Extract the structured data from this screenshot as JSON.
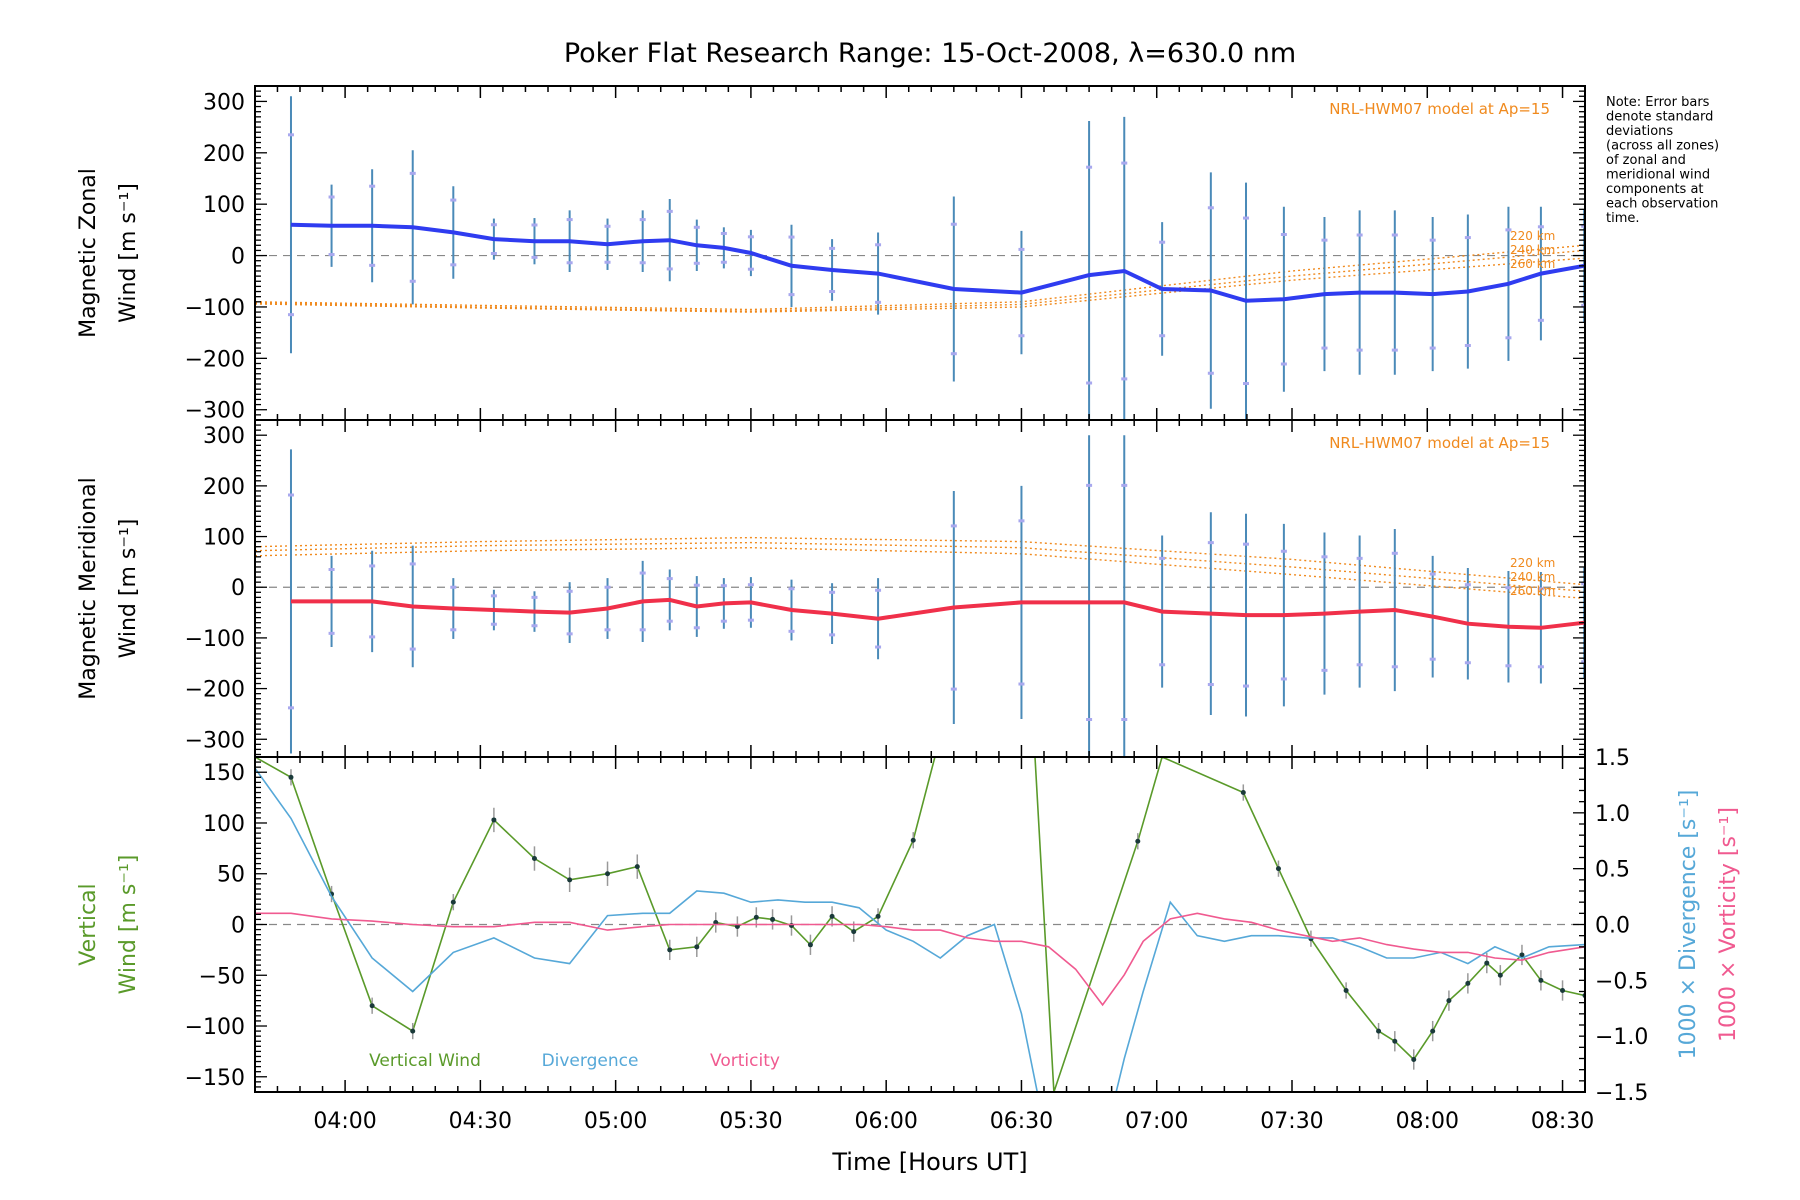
{
  "title": "Poker Flat Research Range: 15-Oct-2008, λ=630.0 nm",
  "note": [
    "Note: Error bars",
    "denote standard",
    "deviations",
    "(across all zones)",
    "of zonal and",
    "meridional wind",
    "components at",
    "each observation",
    "time."
  ],
  "colors": {
    "zonal": "#2f3cf0",
    "meridional": "#f0304a",
    "model": "#f08a1e",
    "vertical": "#5a9a2a",
    "divergence": "#56a8d8",
    "vorticity": "#f05a90",
    "zero": "#888888",
    "scatter": "#a8a8ee"
  },
  "xaxis": {
    "label": "Time [Hours UT]",
    "ticks": [
      "04:00",
      "04:30",
      "05:00",
      "05:30",
      "06:00",
      "06:30",
      "07:00",
      "07:30",
      "08:00",
      "08:30"
    ],
    "range_hours": [
      3.667,
      8.583
    ]
  },
  "chart_data": [
    {
      "type": "line",
      "panel": "zonal",
      "ylabel": [
        "Magnetic Zonal",
        "Wind [m s⁻¹]"
      ],
      "ylim": [
        -320,
        330
      ],
      "yticks": [
        "300",
        "200",
        "100",
        "0",
        "−100",
        "−200",
        "−300"
      ],
      "model_label": "NRL-HWM07 model at Ap=15",
      "model_alt_labels": [
        "220 km",
        "240 km",
        "260 km"
      ],
      "series": [
        {
          "x": [
            3.8,
            3.95,
            4.1,
            4.25,
            4.4,
            4.55,
            4.7,
            4.83,
            4.97,
            5.1,
            5.2,
            5.3,
            5.4,
            5.5,
            5.65,
            5.8,
            5.97,
            6.25,
            6.5,
            6.75,
            6.88,
            7.02,
            7.2,
            7.33,
            7.47,
            7.62,
            7.75,
            7.88,
            8.02,
            8.15,
            8.3,
            8.42,
            8.58
          ],
          "y": [
            60,
            58,
            58,
            55,
            45,
            32,
            28,
            28,
            22,
            28,
            30,
            20,
            15,
            5,
            -20,
            -28,
            -35,
            -65,
            -72,
            -38,
            -30,
            -65,
            -68,
            -88,
            -85,
            -75,
            -72,
            -72,
            -75,
            -70,
            -55,
            -35,
            -20
          ],
          "err": [
            250,
            80,
            110,
            150,
            90,
            40,
            45,
            60,
            50,
            60,
            80,
            50,
            40,
            45,
            80,
            60,
            80,
            180,
            120,
            300,
            300,
            130,
            230,
            230,
            180,
            150,
            160,
            160,
            150,
            150,
            150,
            130,
            110
          ]
        }
      ],
      "model_curves": [
        {
          "x": [
            3.667,
            4.5,
            5.5,
            6.5,
            7.5,
            8.583
          ],
          "y": [
            -90,
            -97,
            -105,
            -90,
            -30,
            20
          ]
        },
        {
          "x": [
            3.667,
            4.5,
            5.5,
            6.5,
            7.5,
            8.583
          ],
          "y": [
            -92,
            -100,
            -108,
            -95,
            -40,
            10
          ]
        },
        {
          "x": [
            3.667,
            4.5,
            5.5,
            6.5,
            7.5,
            8.583
          ],
          "y": [
            -94,
            -102,
            -110,
            -100,
            -48,
            -5
          ]
        }
      ]
    },
    {
      "type": "line",
      "panel": "meridional",
      "ylabel": [
        "Magnetic Meridional",
        "Wind [m s⁻¹]"
      ],
      "ylim": [
        -335,
        330
      ],
      "yticks": [
        "300",
        "200",
        "100",
        "0",
        "−100",
        "−200",
        "−300"
      ],
      "model_label": "NRL-HWM07 model at Ap=15",
      "model_alt_labels": [
        "220 km",
        "240 km",
        "260 km"
      ],
      "series": [
        {
          "x": [
            3.8,
            3.95,
            4.1,
            4.25,
            4.4,
            4.55,
            4.7,
            4.83,
            4.97,
            5.1,
            5.2,
            5.3,
            5.4,
            5.5,
            5.65,
            5.8,
            5.97,
            6.25,
            6.5,
            6.75,
            6.88,
            7.02,
            7.2,
            7.33,
            7.47,
            7.62,
            7.75,
            7.88,
            8.02,
            8.15,
            8.3,
            8.42,
            8.58
          ],
          "y": [
            -28,
            -28,
            -28,
            -38,
            -42,
            -45,
            -48,
            -50,
            -42,
            -28,
            -25,
            -38,
            -32,
            -30,
            -45,
            -52,
            -62,
            -40,
            -30,
            -30,
            -30,
            -48,
            -52,
            -55,
            -55,
            -52,
            -48,
            -45,
            -58,
            -72,
            -78,
            -80,
            -70
          ],
          "err": [
            300,
            90,
            100,
            120,
            60,
            40,
            40,
            60,
            60,
            80,
            60,
            60,
            50,
            50,
            60,
            60,
            80,
            230,
            230,
            330,
            330,
            150,
            200,
            200,
            180,
            160,
            150,
            160,
            120,
            110,
            110,
            110,
            110
          ]
        }
      ],
      "model_curves": [
        {
          "x": [
            3.667,
            4.5,
            5.5,
            6.5,
            7.5,
            8.583
          ],
          "y": [
            80,
            90,
            98,
            90,
            55,
            5
          ]
        },
        {
          "x": [
            3.667,
            4.5,
            5.5,
            6.5,
            7.5,
            8.583
          ],
          "y": [
            72,
            82,
            88,
            78,
            40,
            -8
          ]
        },
        {
          "x": [
            3.667,
            4.5,
            5.5,
            6.5,
            7.5,
            8.583
          ],
          "y": [
            62,
            72,
            78,
            66,
            25,
            -22
          ]
        }
      ]
    },
    {
      "type": "line",
      "panel": "vertical",
      "ylabel": [
        "Vertical",
        "Wind [m s⁻¹]"
      ],
      "ylabel_right": [
        "1000 × Divergence [s⁻¹]",
        "1000 × Vorticity [s⁻¹]"
      ],
      "ylim": [
        -165,
        165
      ],
      "ylim_right": [
        -1.5,
        1.5
      ],
      "yticks": [
        "150",
        "100",
        "50",
        "0",
        "−50",
        "−100",
        "−150"
      ],
      "yticks_right": [
        "1.5",
        "1.0",
        "0.5",
        "0.0",
        "−0.5",
        "−1.0",
        "−1.5"
      ],
      "legend": [
        "Vertical Wind",
        "Divergence",
        "Vorticity"
      ],
      "series": [
        {
          "name": "Vertical Wind",
          "x": [
            3.667,
            3.8,
            3.95,
            4.1,
            4.25,
            4.4,
            4.55,
            4.7,
            4.83,
            4.97,
            5.08,
            5.2,
            5.3,
            5.37,
            5.45,
            5.52,
            5.58,
            5.65,
            5.72,
            5.8,
            5.88,
            5.97,
            6.1,
            6.18,
            6.55,
            6.62,
            6.93,
            7.02,
            7.32,
            7.45,
            7.57,
            7.7,
            7.82,
            7.88,
            7.95,
            8.02,
            8.08,
            8.15,
            8.22,
            8.27,
            8.35,
            8.42,
            8.5,
            8.583
          ],
          "y": [
            165,
            145,
            30,
            -80,
            -105,
            22,
            103,
            65,
            44,
            50,
            57,
            -25,
            -22,
            2,
            -2,
            7,
            5,
            -1,
            -20,
            8,
            -7,
            8,
            83,
            165,
            165,
            -165,
            82,
            165,
            130,
            55,
            -14,
            -65,
            -105,
            -115,
            -133,
            -105,
            -75,
            -58,
            -38,
            -50,
            -30,
            -55,
            -65,
            -70
          ],
          "err": [
            0,
            8,
            8,
            8,
            8,
            8,
            12,
            12,
            12,
            12,
            12,
            10,
            10,
            10,
            10,
            10,
            10,
            10,
            10,
            10,
            10,
            8,
            8,
            0,
            0,
            0,
            8,
            0,
            8,
            8,
            8,
            8,
            8,
            10,
            10,
            10,
            10,
            10,
            10,
            10,
            10,
            10,
            10,
            10
          ]
        },
        {
          "name": "Divergence",
          "x": [
            3.667,
            3.8,
            3.95,
            4.1,
            4.25,
            4.4,
            4.55,
            4.7,
            4.83,
            4.97,
            5.1,
            5.2,
            5.3,
            5.4,
            5.5,
            5.6,
            5.7,
            5.8,
            5.9,
            6.0,
            6.1,
            6.2,
            6.3,
            6.4,
            6.5,
            6.6,
            6.7,
            6.8,
            6.88,
            6.95,
            7.05,
            7.15,
            7.25,
            7.35,
            7.45,
            7.55,
            7.65,
            7.75,
            7.85,
            7.95,
            8.05,
            8.15,
            8.25,
            8.35,
            8.45,
            8.583
          ],
          "y": [
            1.4,
            0.95,
            0.25,
            -0.3,
            -0.6,
            -0.25,
            -0.12,
            -0.3,
            -0.35,
            0.08,
            0.1,
            0.1,
            0.3,
            0.28,
            0.2,
            0.22,
            0.2,
            0.2,
            0.15,
            -0.05,
            -0.15,
            -0.3,
            -0.1,
            0.0,
            -0.8,
            -2.0,
            -2.0,
            -2.0,
            -1.2,
            -0.6,
            0.2,
            -0.1,
            -0.15,
            -0.1,
            -0.1,
            -0.12,
            -0.12,
            -0.2,
            -0.3,
            -0.3,
            -0.25,
            -0.35,
            -0.2,
            -0.3,
            -0.2,
            -0.18
          ]
        },
        {
          "name": "Vorticity",
          "x": [
            3.667,
            3.8,
            3.95,
            4.1,
            4.25,
            4.4,
            4.55,
            4.7,
            4.83,
            4.97,
            5.1,
            5.2,
            5.3,
            5.4,
            5.5,
            5.6,
            5.7,
            5.8,
            5.9,
            6.0,
            6.1,
            6.2,
            6.3,
            6.4,
            6.5,
            6.6,
            6.7,
            6.8,
            6.88,
            6.95,
            7.05,
            7.15,
            7.25,
            7.35,
            7.45,
            7.55,
            7.65,
            7.75,
            7.85,
            7.95,
            8.05,
            8.15,
            8.25,
            8.35,
            8.45,
            8.583
          ],
          "y": [
            0.1,
            0.1,
            0.05,
            0.03,
            0.0,
            -0.02,
            -0.02,
            0.02,
            0.02,
            -0.05,
            -0.02,
            0.0,
            0.0,
            0.0,
            0.0,
            0.0,
            0.0,
            0.0,
            0.0,
            -0.02,
            -0.05,
            -0.05,
            -0.12,
            -0.15,
            -0.15,
            -0.2,
            -0.4,
            -0.72,
            -0.45,
            -0.15,
            0.05,
            0.1,
            0.05,
            0.02,
            -0.05,
            -0.1,
            -0.15,
            -0.12,
            -0.18,
            -0.22,
            -0.25,
            -0.25,
            -0.3,
            -0.32,
            -0.25,
            -0.2
          ]
        }
      ]
    }
  ]
}
